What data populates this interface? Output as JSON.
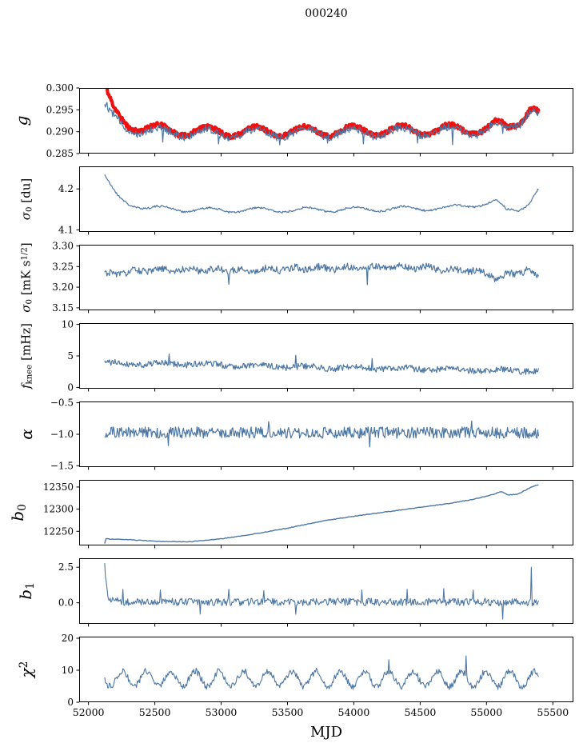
{
  "title": "000240",
  "chart_data": {
    "type": "line",
    "title": "000240",
    "xlabel": "MJD",
    "grid": false,
    "legend": null,
    "xlim": [
      51930,
      55655
    ],
    "x_range": [
      52122,
      55396
    ],
    "xticks": {
      "values": [
        52000,
        52500,
        53000,
        53500,
        54000,
        54500,
        55000,
        55500
      ],
      "labels": [
        "52000",
        "52500",
        "53000",
        "53500",
        "54000",
        "54500",
        "55000",
        "55500"
      ]
    },
    "colors": {
      "line_blue": "#4d77a3",
      "band_red": "#ee1111",
      "axes": "#000000"
    },
    "panels": [
      {
        "id": "g",
        "ylabel_segments": [
          {
            "t": "g",
            "it": true
          }
        ],
        "ylim": [
          0.285,
          0.3
        ],
        "yticks": {
          "values": [
            0.285,
            0.29,
            0.295,
            0.3
          ],
          "labels": [
            "0.285",
            "0.290",
            "0.295",
            "0.300"
          ]
        },
        "series": [
          {
            "name": "g-smoothed-band",
            "color": "#ee1111",
            "width": 4.2,
            "step": 4,
            "seed": 11,
            "noise": 0.0005,
            "osc": {
              "amp": 0.0011,
              "period": 365,
              "peak": 52530
            },
            "trend": [
              [
                52120,
                0.3012
              ],
              [
                52150,
                0.2975
              ],
              [
                52190,
                0.2948
              ],
              [
                52240,
                0.293
              ],
              [
                52300,
                0.2918
              ],
              [
                52400,
                0.2909
              ],
              [
                52600,
                0.2903
              ],
              [
                53000,
                0.29
              ],
              [
                53600,
                0.2901
              ],
              [
                54200,
                0.2903
              ],
              [
                54700,
                0.2905
              ],
              [
                55000,
                0.2906
              ],
              [
                55080,
                0.2916
              ],
              [
                55160,
                0.2907
              ],
              [
                55250,
                0.2929
              ],
              [
                55330,
                0.2956
              ],
              [
                55370,
                0.295
              ],
              [
                55396,
                0.294
              ]
            ]
          },
          {
            "name": "g-data-line",
            "color": "#4d77a3",
            "width": 1.2,
            "step": 6,
            "seed": 12,
            "noise": 0.0009,
            "osc": {
              "amp": 0.001,
              "period": 365,
              "peak": 52530
            },
            "trend": [
              [
                52120,
                0.296
              ],
              [
                52160,
                0.294
              ],
              [
                52220,
                0.2922
              ],
              [
                52300,
                0.291
              ],
              [
                52400,
                0.2903
              ],
              [
                52600,
                0.2898
              ],
              [
                53000,
                0.2896
              ],
              [
                53600,
                0.2897
              ],
              [
                54200,
                0.2899
              ],
              [
                54700,
                0.2901
              ],
              [
                55000,
                0.2902
              ],
              [
                55080,
                0.2913
              ],
              [
                55160,
                0.2903
              ],
              [
                55250,
                0.2925
              ],
              [
                55330,
                0.2953
              ],
              [
                55370,
                0.2946
              ],
              [
                55396,
                0.2936
              ]
            ],
            "spikes": [
              [
                52560,
                0.2876
              ],
              [
                52980,
                0.2872
              ],
              [
                53440,
                0.287
              ],
              [
                53800,
                0.2874
              ],
              [
                54070,
                0.2872
              ],
              [
                54480,
                0.2874
              ],
              [
                54745,
                0.287
              ],
              [
                55120,
                0.2896
              ]
            ]
          }
        ]
      },
      {
        "id": "sigma0-du",
        "ylabel_segments": [
          {
            "t": "σ",
            "it": true
          },
          {
            "t": "0",
            "sub": true
          },
          {
            "t": " [du]"
          }
        ],
        "ylim": [
          4.095,
          4.255
        ],
        "yticks": {
          "values": [
            4.1,
            4.2
          ],
          "labels": [
            "4.1",
            "4.2"
          ]
        },
        "series": [
          {
            "name": "sigma0-du-line",
            "color": "#4d77a3",
            "width": 1.2,
            "step": 6,
            "seed": 21,
            "noise": 0.0025,
            "osc": {
              "amp": 0.0055,
              "period": 365,
              "peak": 52550
            },
            "trend": [
              [
                52120,
                4.234
              ],
              [
                52160,
                4.208
              ],
              [
                52220,
                4.18
              ],
              [
                52300,
                4.164
              ],
              [
                52450,
                4.154
              ],
              [
                52700,
                4.15
              ],
              [
                53000,
                4.148
              ],
              [
                53600,
                4.149
              ],
              [
                54200,
                4.151
              ],
              [
                54700,
                4.153
              ],
              [
                55000,
                4.165
              ],
              [
                55080,
                4.168
              ],
              [
                55150,
                4.147
              ],
              [
                55250,
                4.151
              ],
              [
                55320,
                4.168
              ],
              [
                55396,
                4.201
              ]
            ]
          }
        ]
      },
      {
        "id": "sigma0-mK",
        "ylabel_segments": [
          {
            "t": "σ",
            "it": true
          },
          {
            "t": "0",
            "sub": true
          },
          {
            "t": " [mK s"
          },
          {
            "t": "1/2",
            "sup": true
          },
          {
            "t": "]"
          }
        ],
        "ylim": [
          3.144,
          3.303
        ],
        "yticks": {
          "values": [
            3.15,
            3.2,
            3.25,
            3.3
          ],
          "labels": [
            "3.15",
            "3.20",
            "3.25",
            "3.30"
          ]
        },
        "series": [
          {
            "name": "sigma0-mK-line",
            "color": "#4d77a3",
            "width": 1.2,
            "step": 6,
            "seed": 31,
            "noise": 0.0085,
            "osc": {
              "amp": 0.0035,
              "period": 200,
              "peak": 52350
            },
            "trend": [
              [
                52120,
                3.231
              ],
              [
                52400,
                3.24
              ],
              [
                52800,
                3.243
              ],
              [
                53200,
                3.241
              ],
              [
                53600,
                3.246
              ],
              [
                54000,
                3.247
              ],
              [
                54400,
                3.25
              ],
              [
                54700,
                3.243
              ],
              [
                54900,
                3.24
              ],
              [
                55100,
                3.224
              ],
              [
                55200,
                3.233
              ],
              [
                55300,
                3.241
              ],
              [
                55396,
                3.226
              ]
            ],
            "spikes": [
              [
                53060,
                3.207
              ],
              [
                54100,
                3.206
              ],
              [
                55060,
                3.213
              ]
            ]
          }
        ]
      },
      {
        "id": "fknee",
        "ylabel_segments": [
          {
            "t": "f",
            "it": true
          },
          {
            "t": "knee",
            "sub": true
          },
          {
            "t": " [mHz]"
          }
        ],
        "ylim": [
          -0.2,
          10.2
        ],
        "yticks": {
          "values": [
            0,
            5,
            10
          ],
          "labels": [
            "0",
            "5",
            "10"
          ]
        },
        "series": [
          {
            "name": "fknee-line",
            "color": "#4d77a3",
            "width": 1.2,
            "step": 6,
            "seed": 41,
            "noise": 0.5,
            "osc": {
              "amp": 0.15,
              "period": 365,
              "peak": 52550
            },
            "trend": [
              [
                52120,
                3.85
              ],
              [
                52400,
                3.75
              ],
              [
                52800,
                3.7
              ],
              [
                53200,
                3.45
              ],
              [
                53600,
                3.25
              ],
              [
                54000,
                3.1
              ],
              [
                54400,
                2.95
              ],
              [
                54800,
                2.8
              ],
              [
                55100,
                2.7
              ],
              [
                55396,
                2.6
              ]
            ],
            "spikes": [
              [
                52605,
                5.3
              ],
              [
                53560,
                5.1
              ],
              [
                54140,
                4.6
              ]
            ]
          }
        ]
      },
      {
        "id": "alpha",
        "ylabel_segments": [
          {
            "t": "α",
            "it": true
          }
        ],
        "ylim": [
          -1.52,
          -0.48
        ],
        "yticks": {
          "values": [
            -1.5,
            -1.0,
            -0.5
          ],
          "labels": [
            "−1.5",
            "−1.0",
            "−0.5"
          ]
        },
        "series": [
          {
            "name": "alpha-line",
            "color": "#4d77a3",
            "width": 1.2,
            "step": 6,
            "seed": 51,
            "noise": 0.09,
            "trend": [
              [
                52120,
                -0.97
              ],
              [
                55396,
                -0.975
              ]
            ],
            "spikes": [
              [
                52600,
                -1.18
              ],
              [
                53360,
                -0.8
              ],
              [
                54120,
                -1.2
              ],
              [
                54890,
                -0.79
              ]
            ]
          }
        ]
      },
      {
        "id": "b0",
        "ylabel_segments": [
          {
            "t": "b",
            "it": true
          },
          {
            "t": "0",
            "sub": true
          }
        ],
        "ylim": [
          12218,
          12366
        ],
        "yticks": {
          "values": [
            12250,
            12300,
            12350
          ],
          "labels": [
            "12250",
            "12300",
            "12350"
          ]
        },
        "series": [
          {
            "name": "b0-line",
            "color": "#4d77a3",
            "width": 1.4,
            "step": 10,
            "seed": 61,
            "noise": 0.7,
            "trend": [
              [
                52120,
                12218
              ],
              [
                52127,
                12233
              ],
              [
                52300,
                12231
              ],
              [
                52550,
                12227
              ],
              [
                52750,
                12226
              ],
              [
                53000,
                12233
              ],
              [
                53250,
                12244
              ],
              [
                53500,
                12257
              ],
              [
                53800,
                12275
              ],
              [
                54100,
                12288
              ],
              [
                54400,
                12300
              ],
              [
                54700,
                12312
              ],
              [
                54900,
                12322
              ],
              [
                55050,
                12333
              ],
              [
                55110,
                12340
              ],
              [
                55160,
                12332
              ],
              [
                55240,
                12334
              ],
              [
                55320,
                12347
              ],
              [
                55396,
                12356
              ]
            ]
          }
        ]
      },
      {
        "id": "b1",
        "ylabel_segments": [
          {
            "t": "b",
            "it": true
          },
          {
            "t": "1",
            "sub": true
          }
        ],
        "ylim": [
          -1.48,
          3.13
        ],
        "yticks": {
          "values": [
            0.0,
            2.5
          ],
          "labels": [
            "0.0",
            "2.5"
          ]
        },
        "series": [
          {
            "name": "b1-line",
            "color": "#4d77a3",
            "width": 1.1,
            "step": 6,
            "seed": 71,
            "noise": 0.27,
            "trend": [
              [
                52120,
                2.85
              ],
              [
                52132,
                1.6
              ],
              [
                52145,
                0.5
              ],
              [
                52170,
                0.15
              ],
              [
                52300,
                0.06
              ],
              [
                55396,
                0.05
              ]
            ],
            "spikes": [
              [
                52260,
                0.95
              ],
              [
                52540,
                0.9
              ],
              [
                52840,
                -0.8
              ],
              [
                53060,
                0.95
              ],
              [
                53320,
                0.85
              ],
              [
                53560,
                -0.8
              ],
              [
                54060,
                0.9
              ],
              [
                54400,
                0.95
              ],
              [
                54680,
                1.0
              ],
              [
                54900,
                0.9
              ],
              [
                55120,
                -1.15
              ],
              [
                55340,
                2.5
              ]
            ]
          }
        ]
      },
      {
        "id": "chi2",
        "ylabel_segments": [
          {
            "t": "χ",
            "it": true
          },
          {
            "t": "2",
            "sup": true
          }
        ],
        "ylim": [
          0,
          20.5
        ],
        "yticks": {
          "values": [
            0,
            10,
            20
          ],
          "labels": [
            "0",
            "10",
            "20"
          ]
        },
        "series": [
          {
            "name": "chi2-line",
            "color": "#4d77a3",
            "width": 1.1,
            "step": 6,
            "seed": 81,
            "noise": 1.0,
            "osc": {
              "amp": 2.4,
              "period": 182.6,
              "peak": 52255
            },
            "trend": [
              [
                52120,
                7.4
              ],
              [
                55396,
                7.2
              ]
            ],
            "spikes": [
              [
                54262,
                13.3
              ],
              [
                54845,
                14.5
              ]
            ]
          }
        ]
      }
    ]
  }
}
